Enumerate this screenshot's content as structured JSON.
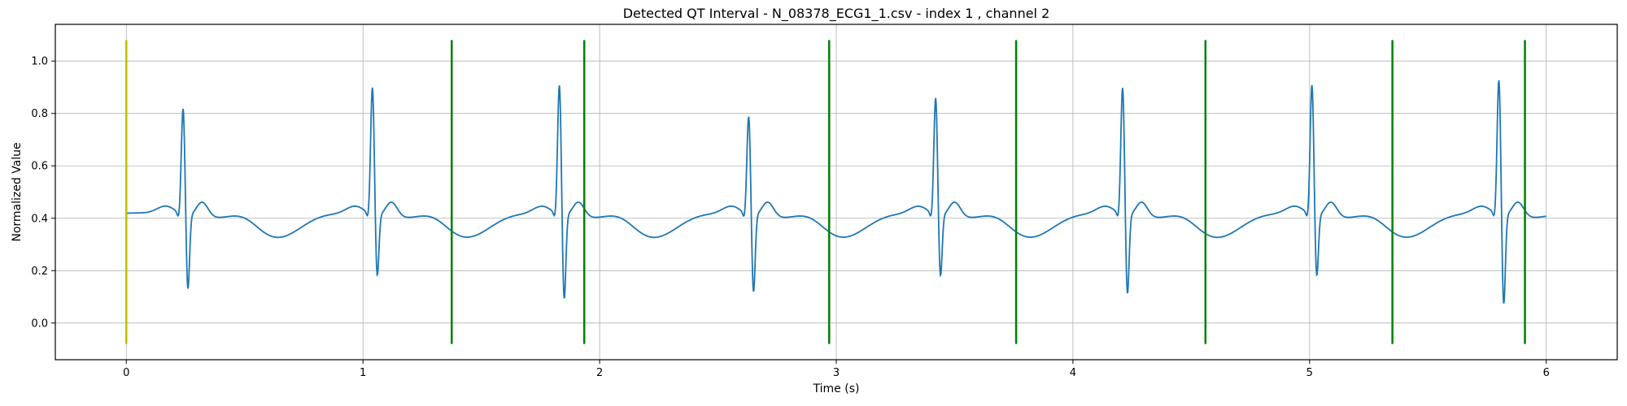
{
  "chart_data": {
    "type": "line",
    "title": "Detected QT Interval - N_08378_ECG1_1.csv - index 1 , channel 2",
    "xlabel": "Time (s)",
    "ylabel": "Normalized Value",
    "xlim": [
      -0.3,
      6.3
    ],
    "ylim": [
      -0.14,
      1.14
    ],
    "xticks": [
      0,
      1,
      2,
      3,
      4,
      5,
      6
    ],
    "yticks": [
      0.0,
      0.2,
      0.4,
      0.6,
      0.8,
      1.0
    ],
    "xtick_labels": [
      "0",
      "1",
      "2",
      "3",
      "4",
      "5",
      "6"
    ],
    "ytick_labels": [
      "0.0",
      "0.2",
      "0.4",
      "0.6",
      "0.8",
      "1.0"
    ],
    "grid": true,
    "signal_color": "#1f77b4",
    "start_marker_color": "#bfbf00",
    "end_marker_color": "#008000",
    "marker_range": [
      -0.08,
      1.08
    ],
    "start_marker": 0.0,
    "end_markers": [
      1.375,
      1.935,
      2.97,
      3.76,
      4.56,
      5.35,
      5.91
    ],
    "beats": [
      {
        "r": 0.24,
        "amp": 0.81,
        "s": 0.14
      },
      {
        "r": 1.04,
        "amp": 0.89,
        "s": 0.19
      },
      {
        "r": 1.83,
        "amp": 0.9,
        "s": 0.1
      },
      {
        "r": 2.63,
        "amp": 0.78,
        "s": 0.13
      },
      {
        "r": 3.42,
        "amp": 0.85,
        "s": 0.19
      },
      {
        "r": 4.21,
        "amp": 0.89,
        "s": 0.12
      },
      {
        "r": 5.01,
        "amp": 0.9,
        "s": 0.19
      },
      {
        "r": 5.8,
        "amp": 0.92,
        "s": 0.08
      }
    ],
    "baseline": 0.4,
    "signal_x_range": [
      0.0,
      6.0
    ]
  }
}
